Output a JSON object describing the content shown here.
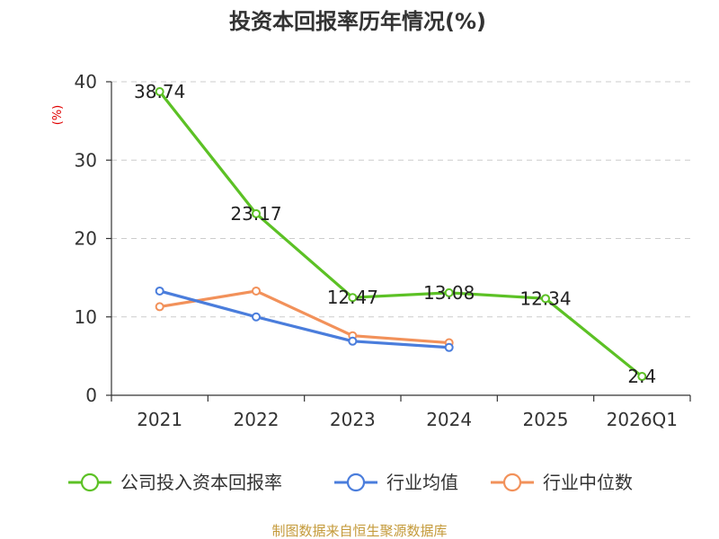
{
  "title": "投资本回报率历年情况(%)",
  "source": "制图数据来自恒生聚源数据库",
  "chart_data": {
    "type": "line",
    "title": "投资本回报率历年情况(%)",
    "ylabel": "(%)",
    "xlabel": "",
    "categories": [
      "2021",
      "2022",
      "2023",
      "2024",
      "2025",
      "2026Q1"
    ],
    "ylim": [
      0,
      40
    ],
    "yticks": [
      0,
      10,
      20,
      30,
      40
    ],
    "grid": true,
    "legend_position": "bottom",
    "series": [
      {
        "name": "公司投入资本回报率",
        "color": "#5cc125",
        "values": [
          38.74,
          23.17,
          12.47,
          13.08,
          12.34,
          2.4
        ],
        "labels": [
          "38.74",
          "23.17",
          "12.47",
          "13.08",
          "12.34",
          "2.4"
        ],
        "show_labels": true
      },
      {
        "name": "行业均值",
        "color": "#4a7ddc",
        "values": [
          13.3,
          10.0,
          6.9,
          6.1,
          null,
          null
        ],
        "show_labels": false
      },
      {
        "name": "行业中位数",
        "color": "#f2915a",
        "values": [
          11.3,
          13.3,
          7.6,
          6.7,
          null,
          null
        ],
        "show_labels": false
      }
    ]
  }
}
